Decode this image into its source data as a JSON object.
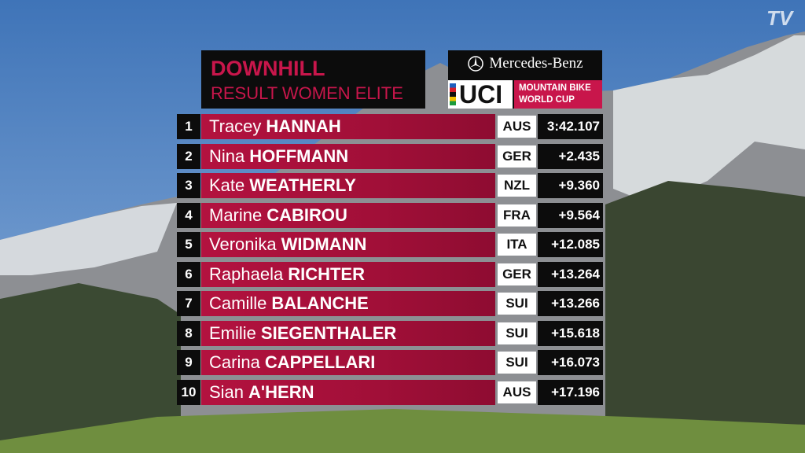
{
  "header": {
    "title": "DOWNHILL",
    "subtitle": "RESULT WOMEN ELITE"
  },
  "sponsor": {
    "brand": "Mercedes-Benz",
    "logo": "UCI",
    "series_line1": "MOUNTAIN BIKE",
    "series_line2": "WORLD CUP"
  },
  "watermark": "TV",
  "table": {
    "rows": [
      [
        "1",
        "Tracey",
        "HANNAH",
        "AUS",
        "3:42.107"
      ],
      [
        "2",
        "Nina",
        "HOFFMANN",
        "GER",
        "+2.435"
      ],
      [
        "3",
        "Kate",
        "WEATHERLY",
        "NZL",
        "+9.360"
      ],
      [
        "4",
        "Marine",
        "CABIROU",
        "FRA",
        "+9.564"
      ],
      [
        "5",
        "Veronika",
        "WIDMANN",
        "ITA",
        "+12.085"
      ],
      [
        "6",
        "Raphaela",
        "RICHTER",
        "GER",
        "+13.264"
      ],
      [
        "7",
        "Camille",
        "BALANCHE",
        "SUI",
        "+13.266"
      ],
      [
        "8",
        "Emilie",
        "SIEGENTHALER",
        "SUI",
        "+15.618"
      ],
      [
        "9",
        "Carina",
        "CAPPELLARI",
        "SUI",
        "+16.073"
      ],
      [
        "10",
        "Sian",
        "A'HERN",
        "AUS",
        "+17.196"
      ]
    ]
  }
}
